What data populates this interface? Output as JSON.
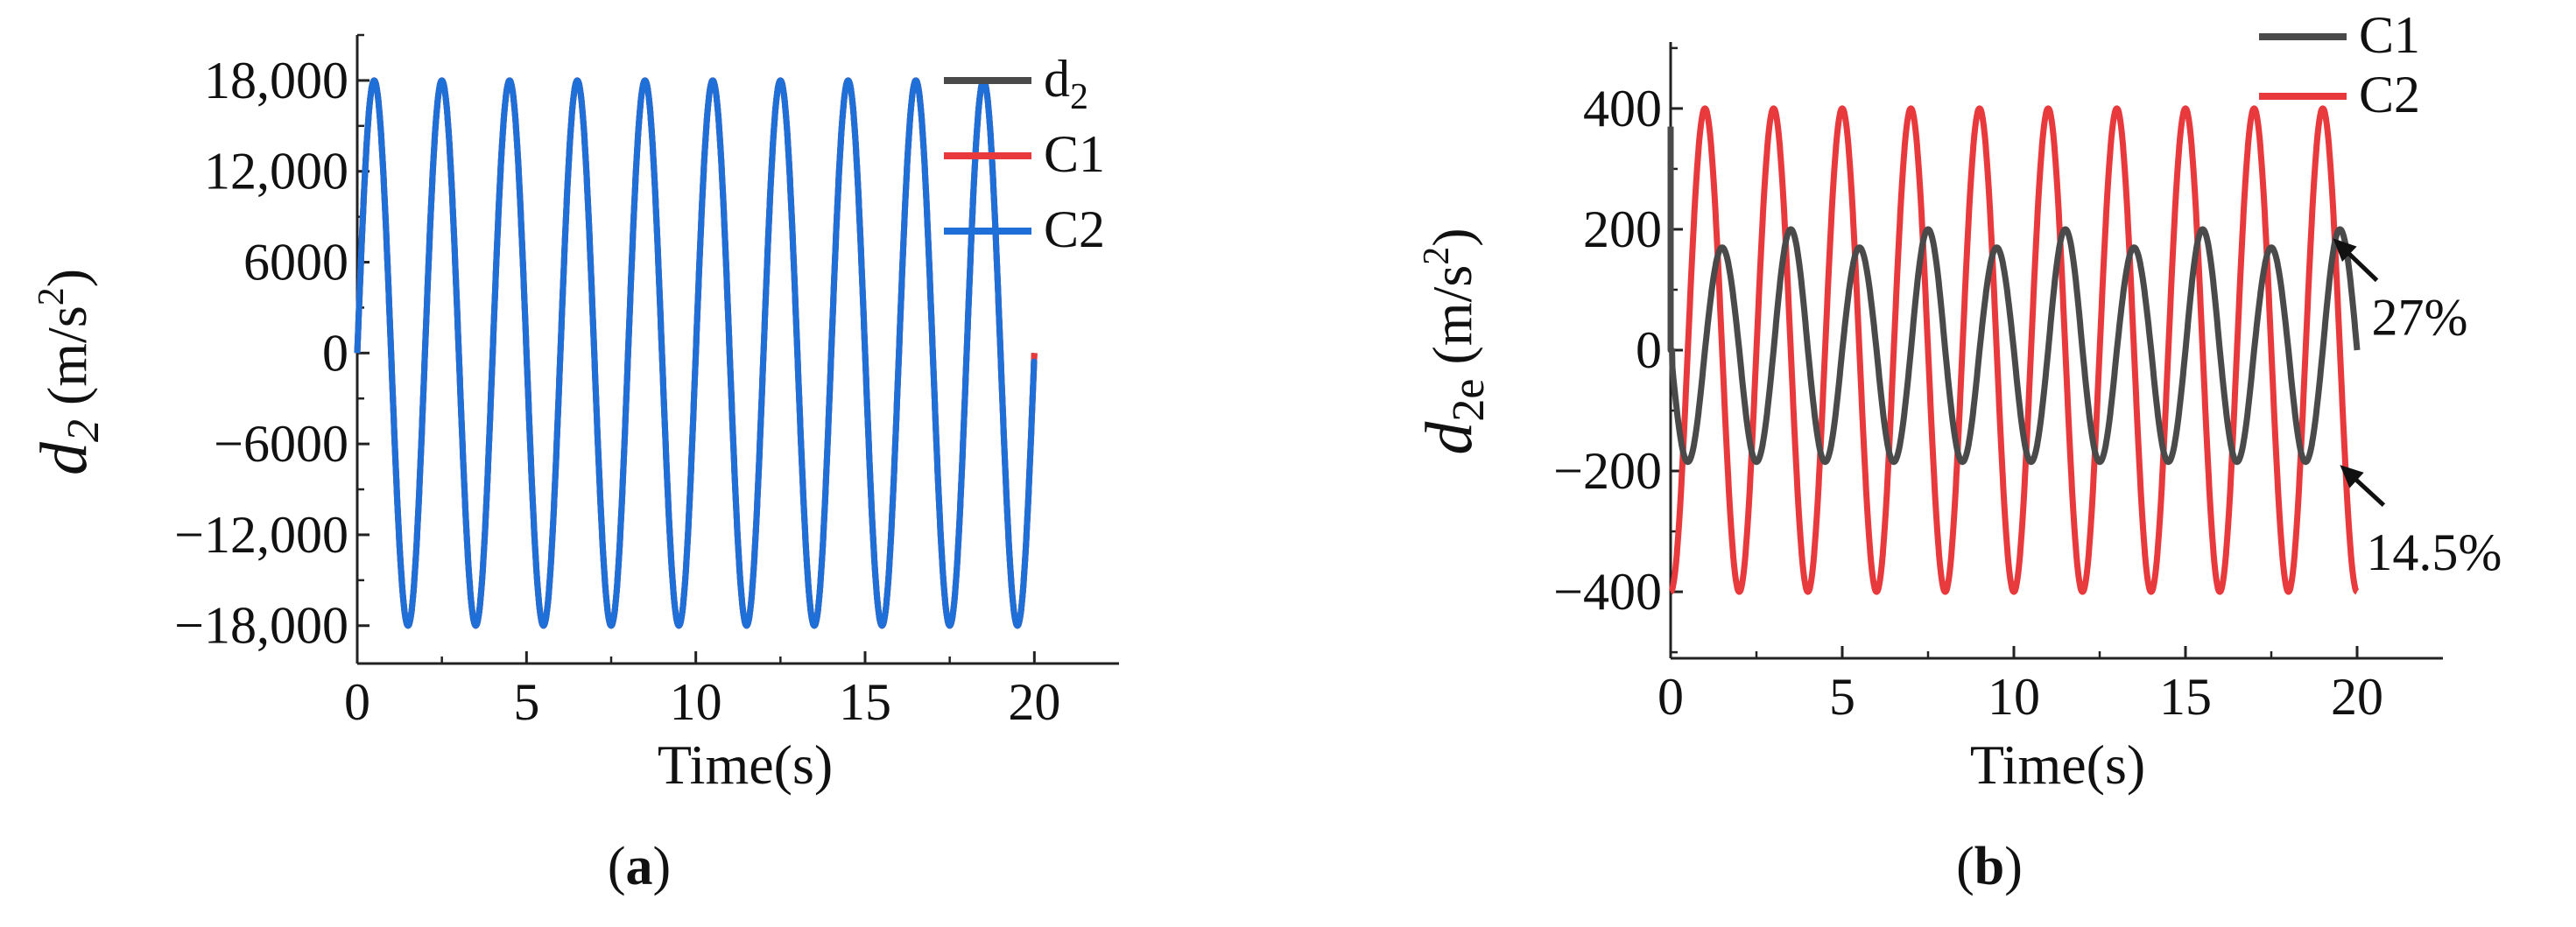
{
  "chart_data": [
    {
      "type": "line",
      "panel_label": "a",
      "xlabel": "Time(s)",
      "ylabel": {
        "var": "d",
        "sub": "2",
        "unit_pre": "(m/s",
        "unit_sup": "2",
        "unit_post": ")"
      },
      "xlim": [
        0,
        22.5
      ],
      "ylim": [
        -20500,
        21000
      ],
      "x_ticks": [
        0,
        5,
        10,
        15,
        20
      ],
      "y_ticks": [
        {
          "v": 18000,
          "label": "18,000"
        },
        {
          "v": 12000,
          "label": "12,000"
        },
        {
          "v": 6000,
          "label": "6000"
        },
        {
          "v": 0,
          "label": "0"
        },
        {
          "v": -6000,
          "label": "−6000"
        },
        {
          "v": -12000,
          "label": "−12,000"
        },
        {
          "v": -18000,
          "label": "−18,000"
        }
      ],
      "legend_position": "top-right",
      "legend": [
        {
          "name": "d",
          "sub": "2",
          "color": "#4a4a4a"
        },
        {
          "name": "C1",
          "sub": "",
          "color": "#e8393c"
        },
        {
          "name": "C2",
          "sub": "",
          "color": "#1f6fd8"
        }
      ],
      "series": [
        {
          "name": "d2",
          "color": "#4a4a4a",
          "amplitude": 18000,
          "period": 2,
          "phase": 0,
          "x_range": [
            0,
            20
          ]
        },
        {
          "name": "C1",
          "color": "#e8393c",
          "amplitude": 18000,
          "period": 2,
          "phase": 0,
          "x_range": [
            0,
            20
          ]
        },
        {
          "name": "C2",
          "color": "#1f6fd8",
          "amplitude": 18000,
          "period": 2,
          "phase": 0,
          "x_range": [
            0,
            20
          ],
          "end_value": -700
        }
      ]
    },
    {
      "type": "line",
      "panel_label": "b",
      "xlabel": "Time(s)",
      "ylabel": {
        "var": "d",
        "sub": "2e",
        "unit_pre": "(m/s",
        "unit_sup": "2",
        "unit_post": ")"
      },
      "xlim": [
        0,
        22.5
      ],
      "ylim": [
        -510,
        510
      ],
      "x_ticks": [
        0,
        5,
        10,
        15,
        20
      ],
      "y_ticks": [
        {
          "v": 400,
          "label": "400"
        },
        {
          "v": 200,
          "label": "200"
        },
        {
          "v": 0,
          "label": "0"
        },
        {
          "v": -200,
          "label": "−200"
        },
        {
          "v": -400,
          "label": "−400"
        }
      ],
      "legend_position": "top-right",
      "legend": [
        {
          "name": "C1",
          "sub": "",
          "color": "#4a4a4a"
        },
        {
          "name": "C2",
          "sub": "",
          "color": "#e8393c"
        }
      ],
      "series": [
        {
          "name": "C1",
          "color": "#4a4a4a",
          "peaks": [
            200,
            170
          ],
          "trough": -185,
          "period": 2,
          "x_range": [
            0,
            20
          ],
          "initial_spike": 370
        },
        {
          "name": "C2",
          "color": "#e8393c",
          "amplitude": 400,
          "period": 2,
          "x_range": [
            0,
            20
          ],
          "phase": "cosine"
        }
      ],
      "annotations": [
        {
          "text": "27%",
          "arrow_to": [
            19.3,
            185
          ]
        },
        {
          "text": "14.5%",
          "arrow_to": [
            19.5,
            -190
          ]
        }
      ]
    }
  ]
}
